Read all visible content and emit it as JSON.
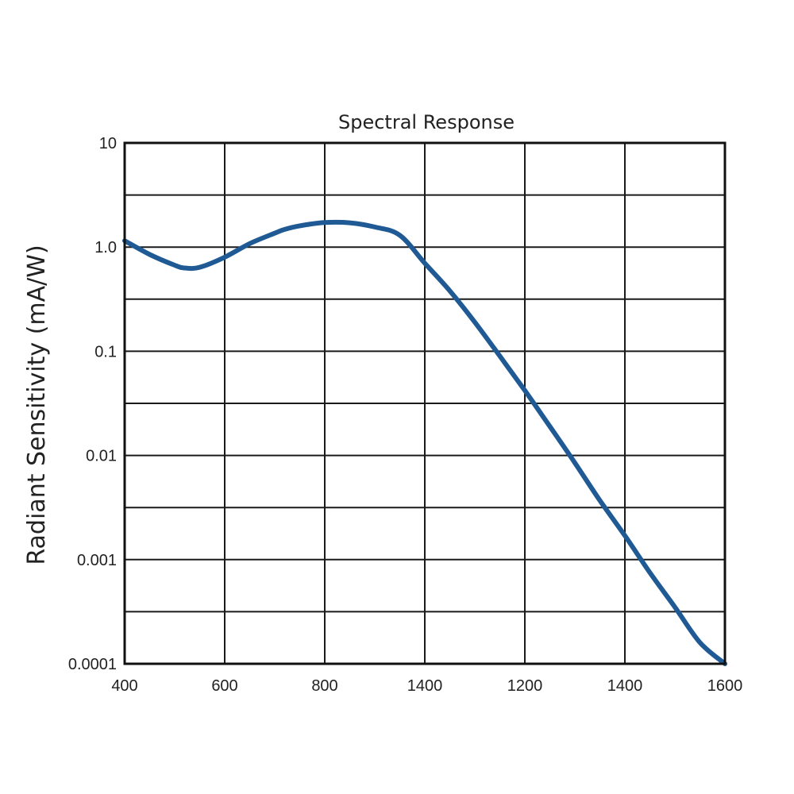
{
  "chart_data": {
    "type": "line",
    "title": "Spectral Response",
    "xlabel": "",
    "ylabel": "Radiant Sensitivity (mA/W)",
    "yscale": "log",
    "ylim": [
      0.0001,
      10
    ],
    "ytick_labels": [
      "10",
      "1.0",
      "0.1",
      "0.01",
      "0.001",
      "0.0001"
    ],
    "xtick_labels": [
      "400",
      "600",
      "800",
      "1400",
      "1200",
      "1400",
      "1600"
    ],
    "grid": true,
    "line_color": "#1f5a94",
    "series": [
      {
        "x_position": [
          0,
          0.25,
          0.5,
          0.6,
          0.75,
          1,
          1.25,
          1.5,
          1.6,
          1.75,
          2,
          2.25,
          2.5,
          2.75,
          3,
          3.25,
          3.5,
          3.75,
          4,
          4.25,
          4.5,
          4.75,
          5,
          5.25,
          5.5,
          5.75,
          6
        ],
        "y": [
          1.15,
          0.85,
          0.67,
          0.63,
          0.64,
          0.8,
          1.08,
          1.36,
          1.48,
          1.6,
          1.72,
          1.71,
          1.56,
          1.3,
          0.7,
          0.38,
          0.19,
          0.09,
          0.042,
          0.019,
          0.0085,
          0.0037,
          0.0017,
          0.00075,
          0.00035,
          0.00016,
          0.0001
        ]
      }
    ]
  }
}
